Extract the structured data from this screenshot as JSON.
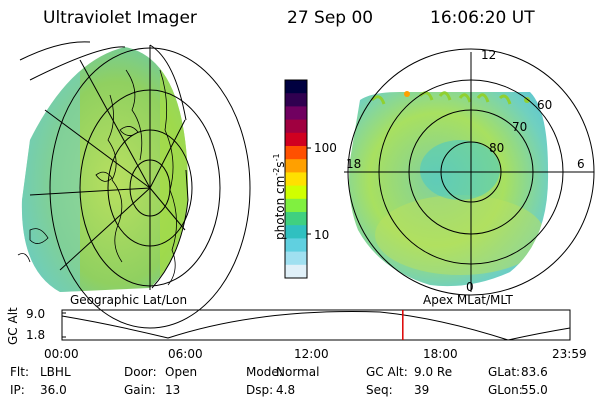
{
  "header": {
    "instrument": "Ultraviolet Imager",
    "date": "27 Sep 00",
    "time": "16:06:20 UT"
  },
  "left_panel": {
    "caption": "Geographic Lat/Lon"
  },
  "right_panel": {
    "caption": "Apex MLat/MLT",
    "mlt_labels": {
      "top": "12",
      "bottom": "0",
      "left": "18",
      "right": "6"
    },
    "lat_labels": [
      "60",
      "70",
      "80"
    ]
  },
  "colorbar": {
    "unit_label": "photon cm",
    "unit_sup1": "-2",
    "unit_s": "s",
    "unit_sup2": "-1",
    "ticks": [
      "100",
      "10"
    ],
    "scale": "log",
    "colors": [
      "#000040",
      "#300050",
      "#700060",
      "#a00040",
      "#d00020",
      "#ff5000",
      "#ffa000",
      "#ffe000",
      "#d0ff00",
      "#80f040",
      "#40d080",
      "#30c0c0",
      "#60d0e0",
      "#a0e0f0",
      "#e0f0f8"
    ]
  },
  "altitude_plot": {
    "ylabel": "GC Alt",
    "yticks": [
      "9.0",
      "1.8"
    ],
    "xticks": [
      "00:00",
      "06:00",
      "12:00",
      "18:00",
      "23:59"
    ],
    "current_time_hours": 16.1,
    "marker_color": "#dd0000"
  },
  "footer": {
    "row1": [
      {
        "key": "Flt:",
        "val": "LBHL"
      },
      {
        "key": "Door:",
        "val": "Open"
      },
      {
        "key": "Mode:",
        "val": "Normal"
      },
      {
        "key": "GC Alt:",
        "val": "9.0 Re"
      },
      {
        "key": "GLat:",
        "val": "83.6"
      }
    ],
    "row2": [
      {
        "key": "IP:",
        "val": "36.0"
      },
      {
        "key": "Gain:",
        "val": "13"
      },
      {
        "key": "Dsp:",
        "val": "4.8"
      },
      {
        "key": "Seq:",
        "val": "39"
      },
      {
        "key": "GLon:",
        "val": "55.0"
      }
    ]
  }
}
